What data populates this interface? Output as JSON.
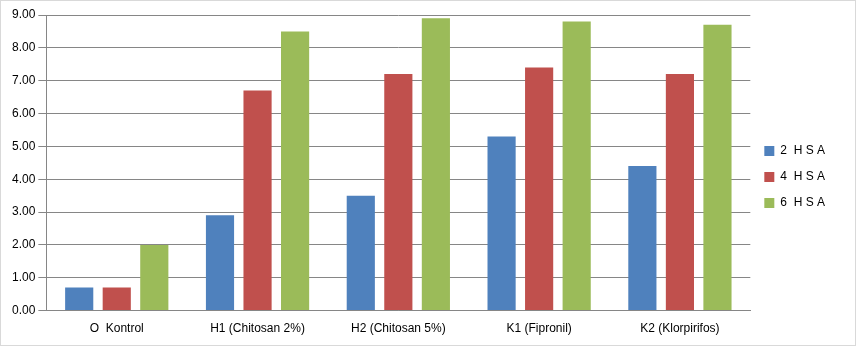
{
  "chart_data": {
    "type": "bar",
    "categories": [
      "O  Kontrol",
      "H1 (Chitosan 2%)",
      "H2 (Chitosan 5%)",
      "K1 (Fipronil)",
      "K2 (Klorpirifos)"
    ],
    "series": [
      {
        "name": "2  H S A",
        "color": "#4f81bd",
        "values": [
          0.7,
          2.9,
          3.5,
          5.3,
          4.4
        ]
      },
      {
        "name": "4  H S A",
        "color": "#c0504d",
        "values": [
          0.7,
          6.7,
          7.2,
          7.4,
          7.2
        ]
      },
      {
        "name": "6  H S A",
        "color": "#9bbb59",
        "values": [
          2.0,
          8.5,
          8.9,
          8.8,
          8.7
        ]
      }
    ],
    "ylim": [
      0,
      9
    ],
    "yticks": [
      {
        "value": 0,
        "label": "0.00"
      },
      {
        "value": 1,
        "label": "1.00"
      },
      {
        "value": 2,
        "label": "2.00"
      },
      {
        "value": 3,
        "label": "3.00"
      },
      {
        "value": 4,
        "label": "4.00"
      },
      {
        "value": 5,
        "label": "5.00"
      },
      {
        "value": 6,
        "label": "6.00"
      },
      {
        "value": 7,
        "label": "7.00"
      },
      {
        "value": 8,
        "label": "8.00"
      },
      {
        "value": 9,
        "label": "9.00"
      }
    ],
    "grid": true,
    "legend": "right"
  }
}
